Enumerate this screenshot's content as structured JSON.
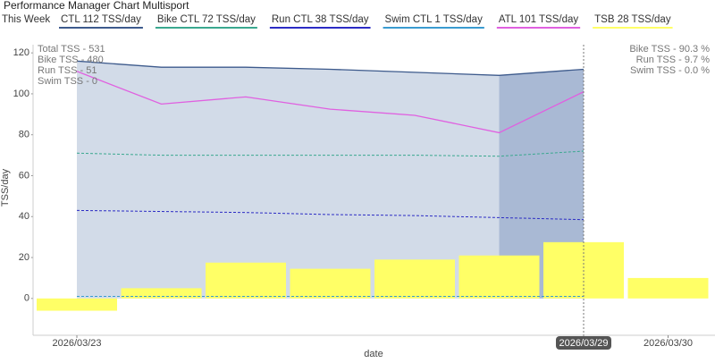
{
  "chart_data": {
    "type": "line",
    "title": "Performance Manager Chart Multisport",
    "legend_label": "This Week",
    "x_label": "date",
    "y_label": "TSS/day",
    "x": [
      "2026/03/23",
      "2026/03/24",
      "2026/03/25",
      "2026/03/26",
      "2026/03/27",
      "2026/03/28",
      "2026/03/29",
      "2026/03/30"
    ],
    "xticks": [
      "2026/03/23",
      "2026/03/29",
      "2026/03/30"
    ],
    "highlight_xtick": "2026/03/29",
    "ylim": [
      -18,
      124
    ],
    "yticks": [
      0,
      20,
      40,
      60,
      80,
      100,
      120
    ],
    "series": [
      {
        "name": "CTL  112 TSS/day",
        "color": "#3d5a8c",
        "type": "area",
        "values": [
          116,
          113,
          113,
          112,
          110.5,
          109,
          112,
          null
        ]
      },
      {
        "name": "Bike CTL  72 TSS/day",
        "color": "#3aa88f",
        "type": "line",
        "dashed": true,
        "values": [
          71,
          70,
          70,
          70,
          70,
          69.5,
          72,
          null
        ]
      },
      {
        "name": "Run CTL  38 TSS/day",
        "color": "#2b2bc4",
        "type": "line",
        "dashed": true,
        "values": [
          43,
          42.5,
          42,
          41,
          40.5,
          39.5,
          38.5,
          null
        ]
      },
      {
        "name": "Swim CTL  1 TSS/day",
        "color": "#3a9bd0",
        "type": "line",
        "dashed": true,
        "values": [
          1,
          1,
          1,
          1,
          1,
          1,
          1,
          null
        ]
      },
      {
        "name": "ATL  101 TSS/day",
        "color": "#e060e0",
        "type": "line",
        "values": [
          111,
          95,
          98.5,
          92.5,
          89.5,
          81,
          101,
          null
        ]
      },
      {
        "name": "TSB  28 TSS/day",
        "color": "#ffff66",
        "type": "bar",
        "values": [
          -6,
          5,
          17.5,
          14.5,
          19,
          21,
          27.5,
          10
        ]
      }
    ],
    "annotations_left": [
      "Total TSS - 531",
      "Bike TSS - 480",
      "Run TSS - 51",
      "Swim TSS - 0"
    ],
    "annotations_right": [
      "Bike TSS - 90.3 %",
      "Run TSS - 9.7 %",
      "Swim TSS - 0.0 %"
    ]
  }
}
